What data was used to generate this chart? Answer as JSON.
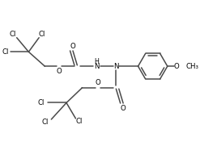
{
  "bg_color": "#ffffff",
  "line_color": "#4a4a4a",
  "text_color": "#000000",
  "line_width": 1.1,
  "font_size": 6.2,
  "fig_w": 2.68,
  "fig_h": 1.91,
  "dpi": 100,
  "xlim": [
    0,
    10
  ],
  "ylim": [
    0,
    7.1
  ]
}
